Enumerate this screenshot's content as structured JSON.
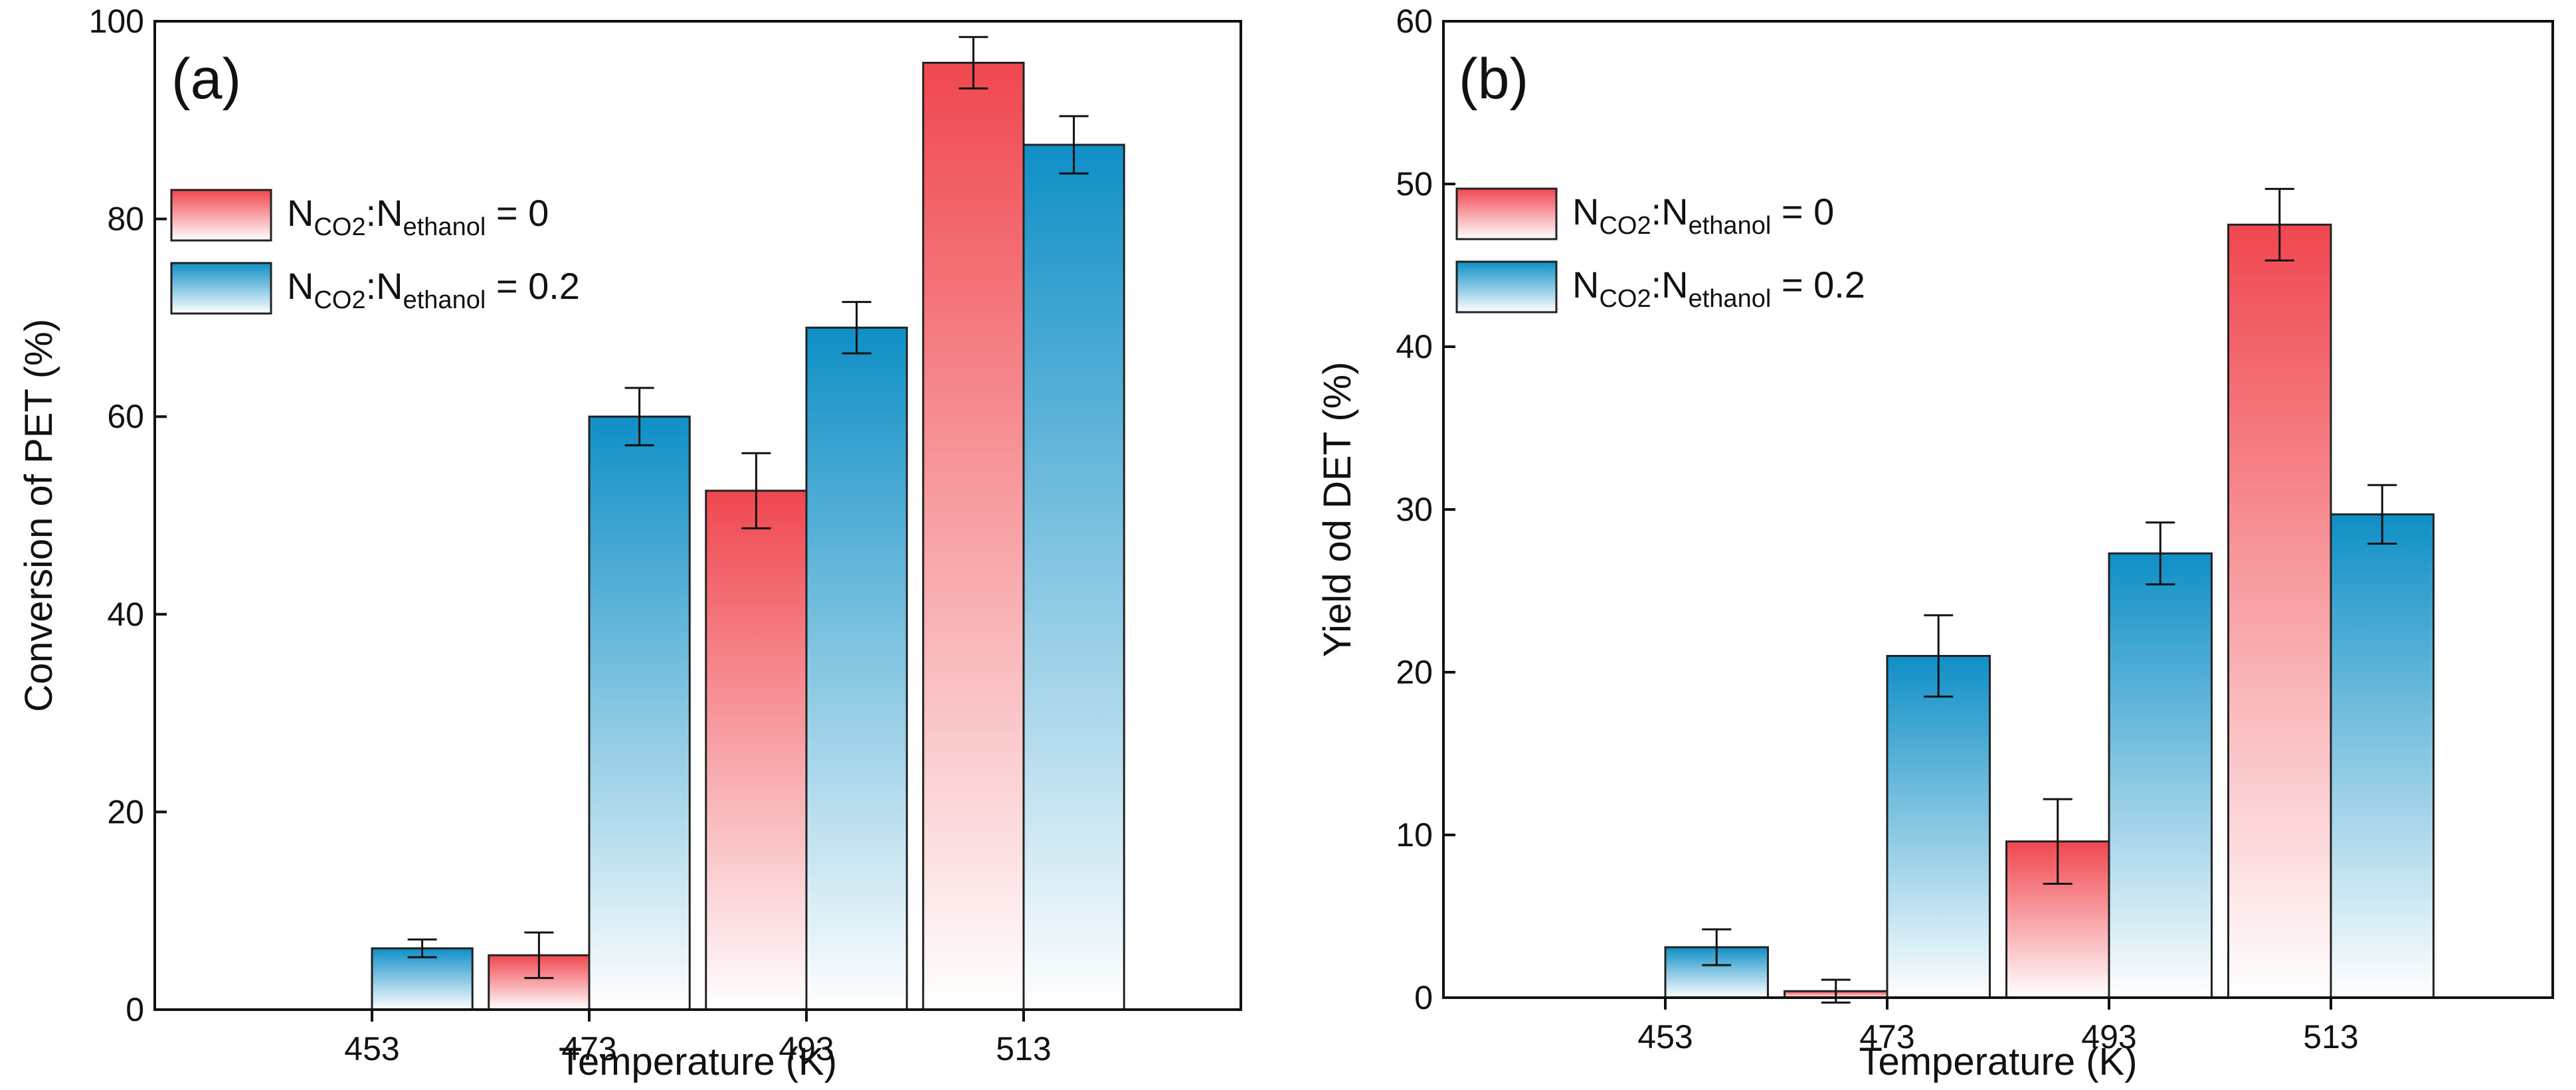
{
  "colors": {
    "red_top": "#f0474f",
    "red_bottom": "#ffffff",
    "blue_top": "#0f8fc6",
    "blue_bottom": "#ffffff",
    "axis": "#111111",
    "bar_edge": "#222222"
  },
  "chart_data": [
    {
      "type": "bar",
      "panel_label": "(a)",
      "categories": [
        "453",
        "473",
        "493",
        "513"
      ],
      "xlabel": "Temperature (K)",
      "ylabel": "Conversion of PET (%)",
      "ylim": [
        0,
        100
      ],
      "yticks": [
        0,
        20,
        40,
        60,
        80,
        100
      ],
      "grid": false,
      "legend_position": "top-left",
      "series": [
        {
          "name": "N_CO2:N_ethanol = 0",
          "legend": {
            "base1": "N",
            "sub1": "CO2",
            "colon": ":",
            "base2": "N",
            "sub2": "ethanol",
            "eq": " = 0"
          },
          "gradient": "red",
          "values": [
            0,
            5.5,
            52.5,
            95.8
          ],
          "errors": [
            0,
            2.3,
            3.8,
            2.6
          ]
        },
        {
          "name": "N_CO2:N_ethanol = 0.2",
          "legend": {
            "base1": "N",
            "sub1": "CO2",
            "colon": ":",
            "base2": "N",
            "sub2": "ethanol",
            "eq": " = 0.2"
          },
          "gradient": "blue",
          "values": [
            6.2,
            60.0,
            69.0,
            87.5
          ],
          "errors": [
            0.9,
            2.9,
            2.6,
            2.9
          ]
        }
      ]
    },
    {
      "type": "bar",
      "panel_label": "(b)",
      "categories": [
        "453",
        "473",
        "493",
        "513"
      ],
      "xlabel": "Temperature (K)",
      "ylabel": "Yield od DET (%)",
      "ylim": [
        0,
        60
      ],
      "yticks": [
        0,
        10,
        20,
        30,
        40,
        50,
        60
      ],
      "grid": false,
      "legend_position": "top-left",
      "series": [
        {
          "name": "N_CO2:N_ethanol = 0",
          "legend": {
            "base1": "N",
            "sub1": "CO2",
            "colon": ":",
            "base2": "N",
            "sub2": "ethanol",
            "eq": " = 0"
          },
          "gradient": "red",
          "values": [
            0,
            0.4,
            9.6,
            47.5
          ],
          "errors": [
            0,
            0.7,
            2.6,
            2.2
          ]
        },
        {
          "name": "N_CO2:N_ethanol = 0.2",
          "legend": {
            "base1": "N",
            "sub1": "CO2",
            "colon": ":",
            "base2": "N",
            "sub2": "ethanol",
            "eq": " = 0.2"
          },
          "gradient": "blue",
          "values": [
            3.1,
            21.0,
            27.3,
            29.7
          ],
          "errors": [
            1.1,
            2.5,
            1.9,
            1.8
          ]
        }
      ]
    }
  ]
}
